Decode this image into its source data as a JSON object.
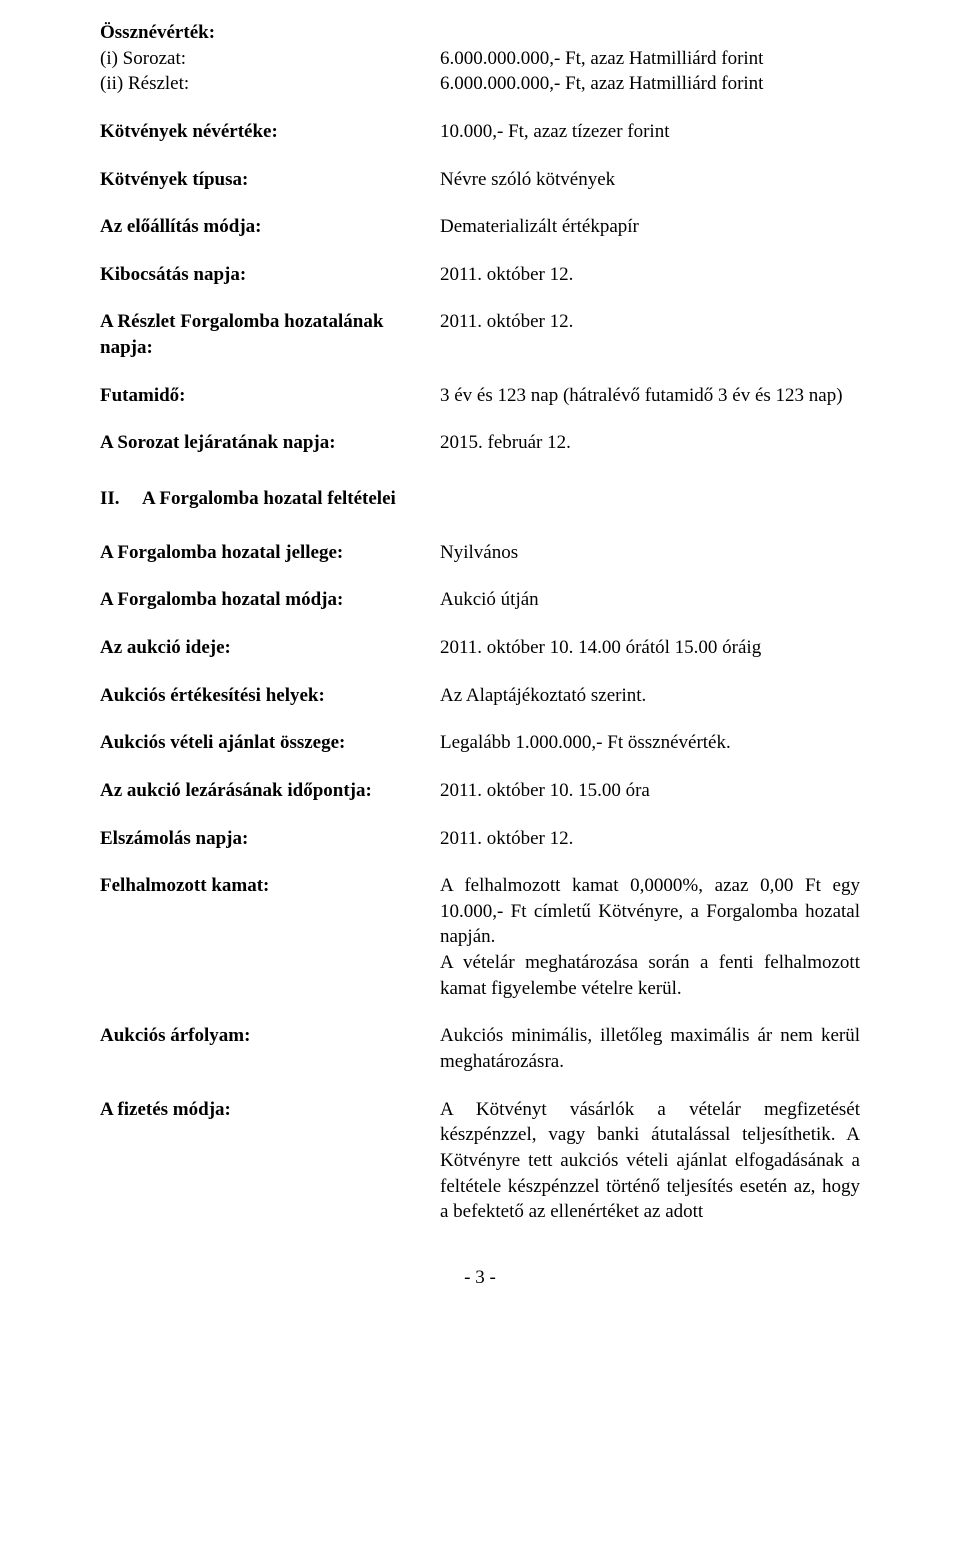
{
  "top": {
    "ossznevertek_label": "Össznévérték:",
    "i_label": "(i) Sorozat:",
    "i_value": "6.000.000.000,- Ft, azaz Hatmilliárd forint",
    "ii_label": "(ii) Részlet:",
    "ii_value": "6.000.000.000,- Ft, azaz Hatmilliárd forint",
    "kotveny_nev_label": "Kötvények névértéke:",
    "kotveny_nev_value": "10.000,- Ft, azaz tízezer forint",
    "kotveny_tipus_label": "Kötvények típusa:",
    "kotveny_tipus_value": "Névre szóló kötvények",
    "eloallitas_label": "Az előállítás módja:",
    "eloallitas_value": "Dematerializált értékpapír",
    "kibocsatas_label": "Kibocsátás napja:",
    "kibocsatas_value": "2011. október 12.",
    "reszlet_forg_label": "A Részlet Forgalomba hozatalának napja:",
    "reszlet_forg_value": "2011. október 12.",
    "futamido_label": "Futamidő:",
    "futamido_value": "3  év és 123 nap (hátralévő futamidő 3 év és 123 nap)",
    "sorozat_lej_label": "A Sorozat lejáratának napja:",
    "sorozat_lej_value": "2015. február 12."
  },
  "section2": {
    "num": "II.",
    "title": "A Forgalomba hozatal feltételei",
    "jellege_label": "A Forgalomba hozatal jellege:",
    "jellege_value": "Nyilvános",
    "modja_label": "A Forgalomba hozatal módja:",
    "modja_value": "Aukció útján",
    "aukcio_ideje_label": "Az aukció ideje:",
    "aukcio_ideje_value": "2011. október 10. 14.00 órától 15.00 óráig",
    "ertekesitesi_label": "Aukciós értékesítési helyek:",
    "ertekesitesi_value": "Az Alaptájékoztató szerint.",
    "veteli_label": "Aukciós vételi ajánlat összege:",
    "veteli_value": "Legalább 1.000.000,- Ft össznévérték.",
    "lezaras_label": "Az aukció lezárásának időpontja:",
    "lezaras_value": "2011. október 10.  15.00 óra",
    "elszamolas_label": "Elszámolás napja:",
    "elszamolas_value": "2011. október 12.",
    "felhalmozott_label": "Felhalmozott kamat:",
    "felhalmozott_line1": "A felhalmozott kamat 0,0000%, azaz  0,00 Ft egy 10.000,- Ft címletű Kötvényre, a Forgalomba hozatal napján.",
    "felhalmozott_line2": "A vételár meghatározása során a fenti felhalmozott kamat figyelembe vételre kerül.",
    "arfolyam_label": "Aukciós árfolyam:",
    "arfolyam_value": "Aukciós minimális, illetőleg maximális ár nem kerül meghatározásra.",
    "fizetes_label": "A fizetés módja:",
    "fizetes_value": "A Kötvényt vásárlók a vételár megfizetését készpénzzel, vagy banki átutalással teljesíthetik. A Kötvényre tett aukciós vételi ajánlat elfogadásának a feltétele készpénzzel történő teljesítés esetén az, hogy a befektető az ellenértéket az adott"
  },
  "page": "- 3 -"
}
